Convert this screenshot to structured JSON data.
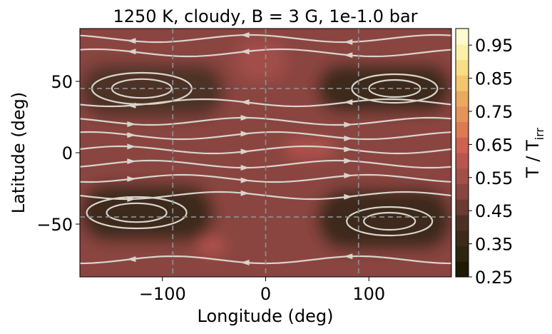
{
  "chart_data": {
    "type": "heatmap",
    "title": "1250 K, cloudy, B = 3 G, 1e-1.0 bar",
    "xlabel": "Longitude (deg)",
    "ylabel": "Latitude (deg)",
    "colorbar_label_main": "T / T",
    "colorbar_label_sub": "irr",
    "xlim": [
      -180,
      180
    ],
    "ylim": [
      -87,
      87
    ],
    "x_ticks": [
      {
        "value": -100,
        "label": "−100"
      },
      {
        "value": 0,
        "label": "0"
      },
      {
        "value": 100,
        "label": "100"
      }
    ],
    "y_ticks": [
      {
        "value": 50,
        "label": "50"
      },
      {
        "value": 0,
        "label": "0"
      },
      {
        "value": -50,
        "label": "−50"
      }
    ],
    "colorbar_ticks": [
      {
        "value": 0.95,
        "label": "0.95"
      },
      {
        "value": 0.85,
        "label": "0.85"
      },
      {
        "value": 0.75,
        "label": "0.75"
      },
      {
        "value": 0.65,
        "label": "0.65"
      },
      {
        "value": 0.55,
        "label": "0.55"
      },
      {
        "value": 0.45,
        "label": "0.45"
      },
      {
        "value": 0.35,
        "label": "0.35"
      },
      {
        "value": 0.25,
        "label": "0.25"
      }
    ],
    "colorbar_range": [
      0.25,
      1.0
    ],
    "reference_lines": {
      "longitudes": [
        -90,
        0,
        90
      ],
      "latitudes": [
        45,
        -45
      ],
      "style": "dashed gray"
    },
    "temperature_regions": [
      {
        "name": "background",
        "lon": [
          -180,
          180
        ],
        "lat": [
          -87,
          87
        ],
        "value": 0.5
      },
      {
        "name": "equatorial-band",
        "lon": [
          -180,
          180
        ],
        "lat": [
          -25,
          22
        ],
        "value": 0.52
      },
      {
        "name": "north-polar-band",
        "lon": [
          -180,
          180
        ],
        "lat": [
          62,
          87
        ],
        "value": 0.5
      },
      {
        "name": "cold-vortex-nw",
        "lon": [
          -180,
          -40
        ],
        "lat": [
          25,
          62
        ],
        "value": 0.4
      },
      {
        "name": "cold-vortex-ne",
        "lon": [
          50,
          180
        ],
        "lat": [
          28,
          62
        ],
        "value": 0.38
      },
      {
        "name": "cold-vortex-sw",
        "lon": [
          -180,
          -50
        ],
        "lat": [
          -62,
          -22
        ],
        "value": 0.38
      },
      {
        "name": "cold-vortex-se",
        "lon": [
          50,
          180
        ],
        "lat": [
          -68,
          -25
        ],
        "value": 0.38
      },
      {
        "name": "warm-spot-eq",
        "lon": [
          20,
          65
        ],
        "lat": [
          -2,
          8
        ],
        "value": 0.58
      },
      {
        "name": "warm-spot-sw",
        "lon": [
          -65,
          -40
        ],
        "lat": [
          -70,
          -60
        ],
        "value": 0.6
      },
      {
        "name": "hot-dayside-north",
        "lon": [
          -30,
          20
        ],
        "lat": [
          50,
          80
        ],
        "value": 0.54
      }
    ],
    "streamline_hint": "zonal flow with four mid-latitude vortices"
  },
  "colors": {
    "colormap": [
      "#1f1a05",
      "#2e2510",
      "#3d2a1a",
      "#4d3025",
      "#6b3b32",
      "#8a453f",
      "#a24e49",
      "#b9554f",
      "#cf6150",
      "#dc7a52",
      "#e4935a",
      "#eba95f",
      "#f3c66e",
      "#f8dd87",
      "#fcf0a8",
      "#fffbd1"
    ],
    "streamline": "#d8d4cc",
    "reference_line": "#8c8c8c"
  }
}
